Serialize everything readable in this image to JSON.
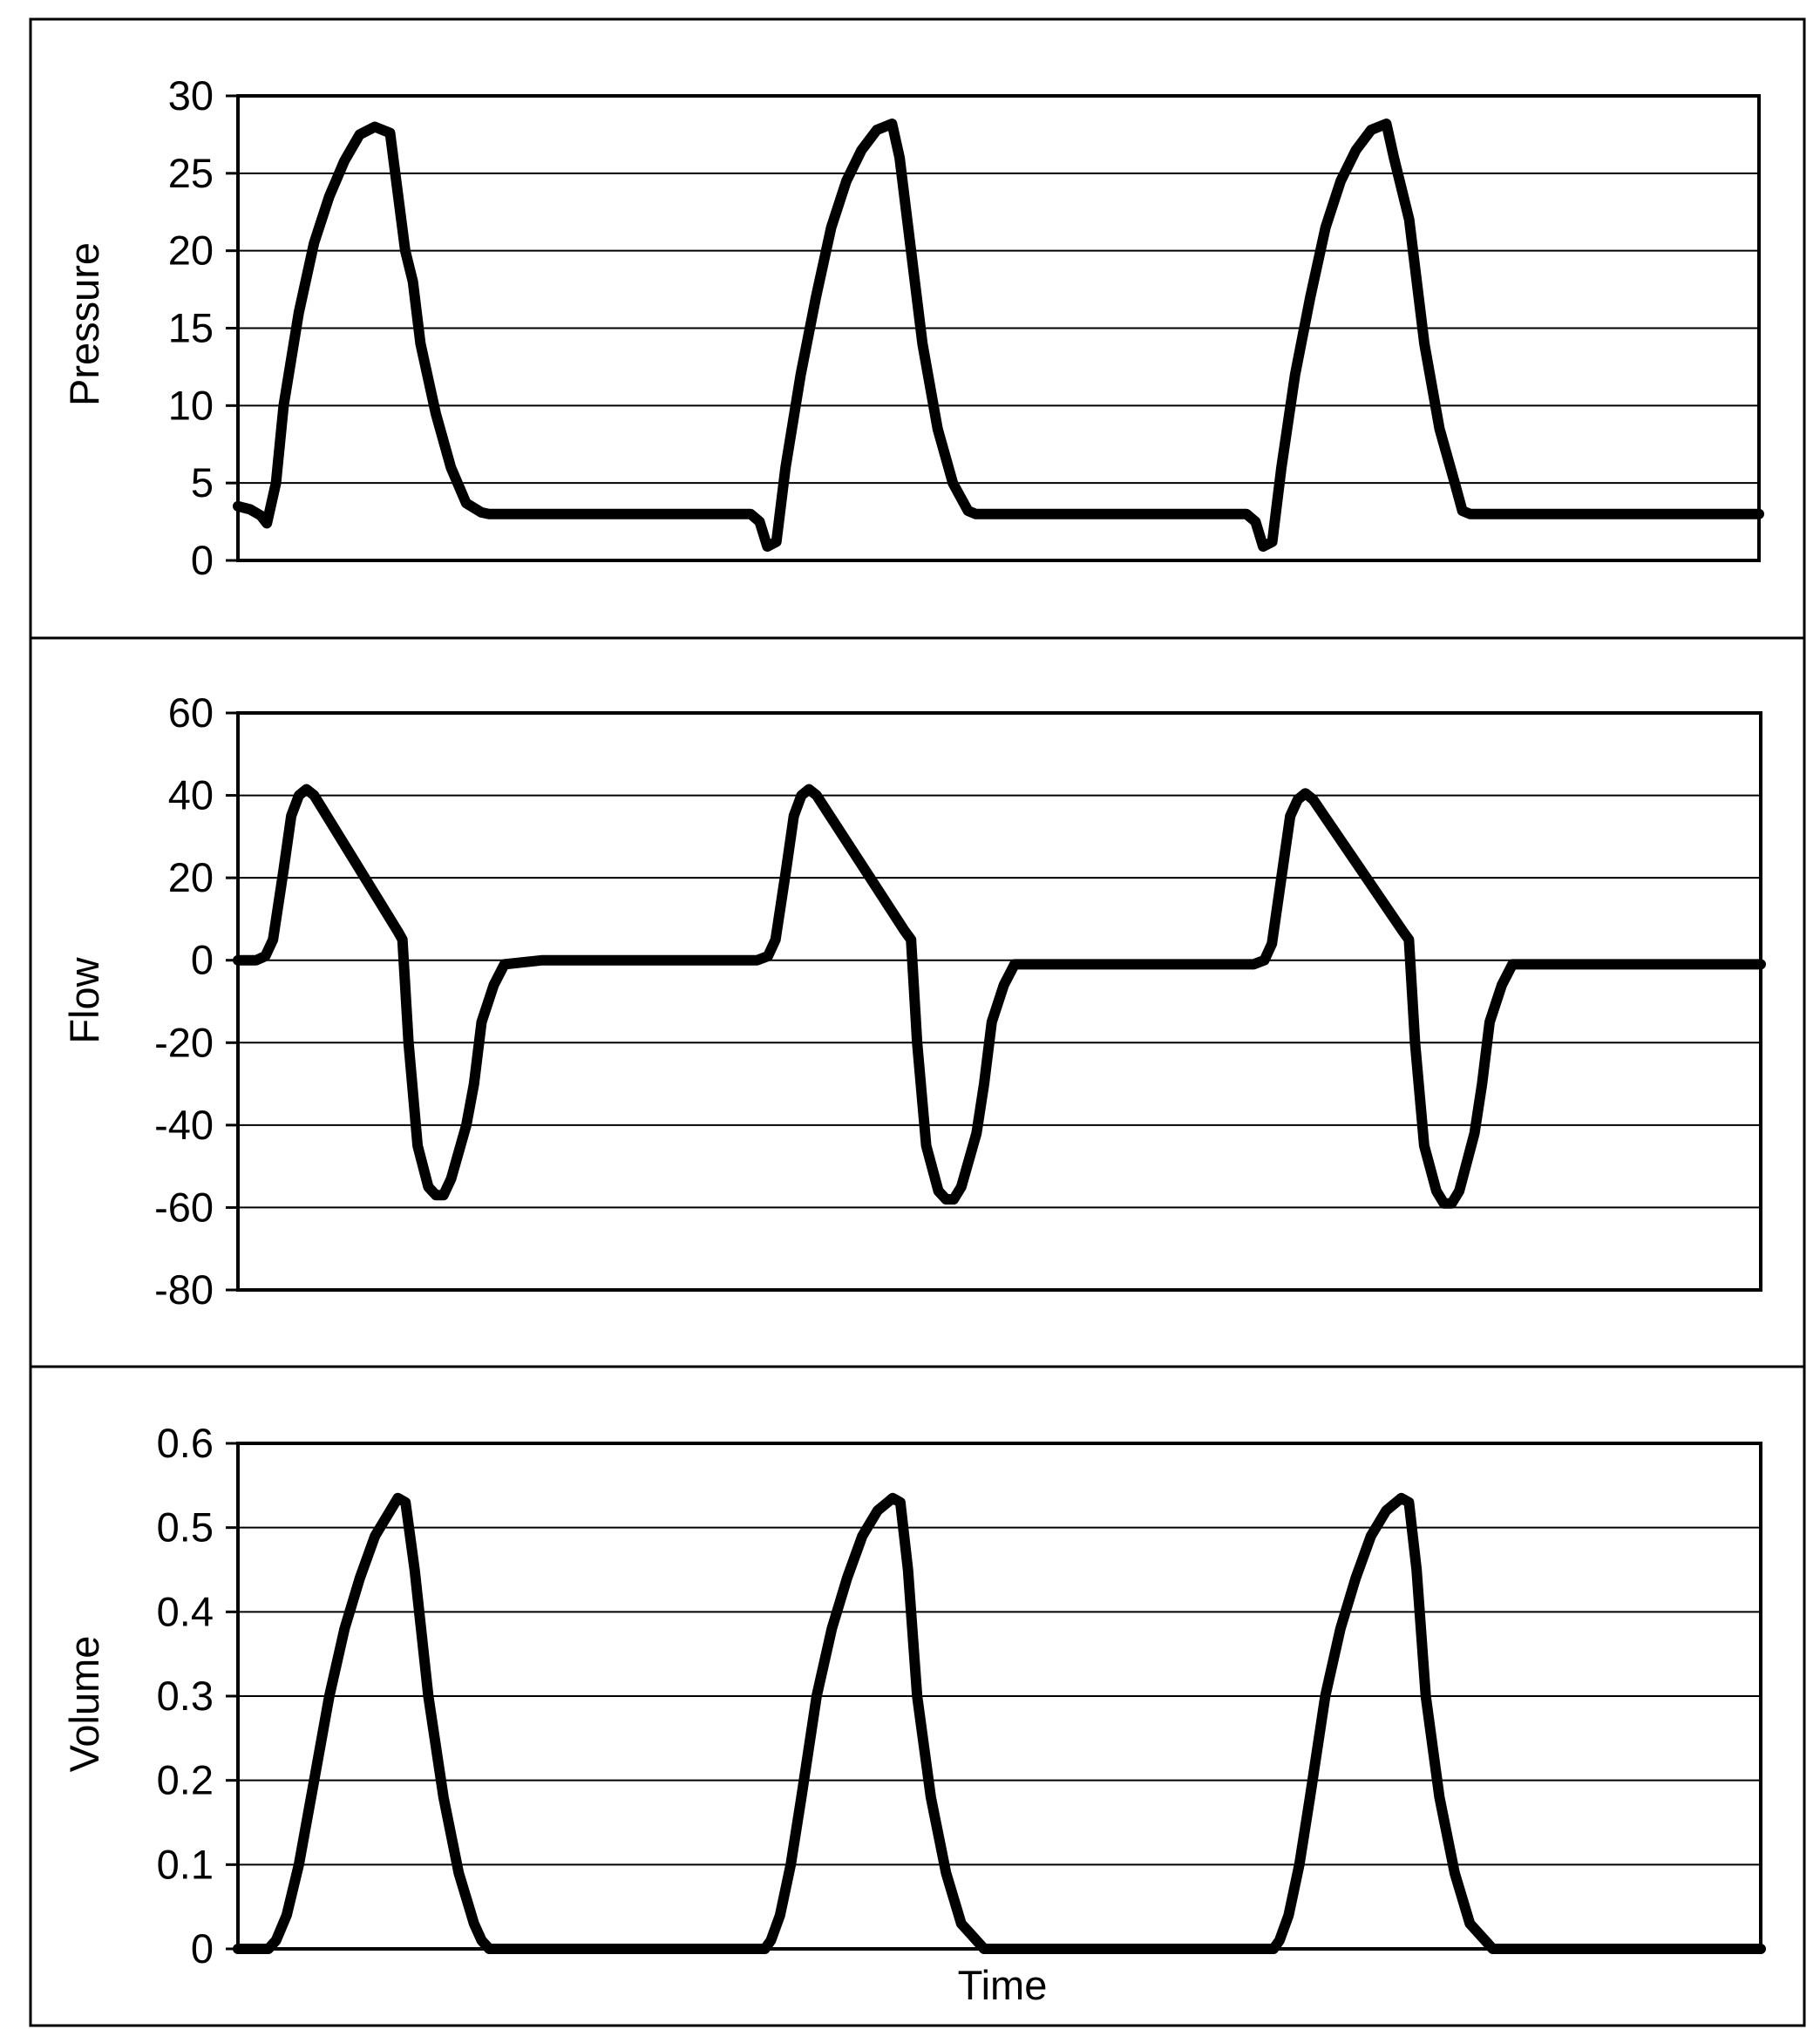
{
  "chart_data": [
    {
      "type": "line",
      "title": "",
      "ylabel": "Pressure",
      "xlabel": "",
      "ylim": [
        0,
        30
      ],
      "yticks": [
        0,
        5,
        10,
        15,
        20,
        25,
        30
      ],
      "grid": true,
      "x": [
        0,
        0.8,
        1.5,
        1.9,
        2.5,
        3,
        4,
        5,
        6,
        7,
        8,
        9,
        10,
        11,
        11.5,
        12,
        13,
        14,
        15,
        16,
        16.5,
        17,
        20,
        25,
        30,
        33.7,
        34.3,
        34.8,
        35.4,
        36,
        37,
        38,
        39,
        40,
        41,
        42,
        43,
        43.5,
        44,
        45,
        46,
        47,
        48,
        48.5,
        49,
        52,
        57,
        62,
        66.3,
        66.9,
        67.4,
        68,
        68.6,
        69.5,
        70.5,
        71.5,
        72.5,
        73.5,
        74.5,
        75.5,
        76,
        77,
        78,
        79,
        80,
        80.5,
        81,
        85,
        90,
        95,
        100
      ],
      "values": [
        3.5,
        3.3,
        2.9,
        2.4,
        5,
        10,
        16,
        20.5,
        23.5,
        25.8,
        27.5,
        28,
        27.6,
        20,
        18,
        14,
        9.5,
        6,
        3.7,
        3.1,
        3,
        3,
        3,
        3,
        3,
        3,
        2.5,
        0.9,
        1.2,
        6,
        12,
        17,
        21.5,
        24.5,
        26.5,
        27.8,
        28.2,
        26,
        22,
        14,
        8.5,
        5,
        3.2,
        3,
        3,
        3,
        3,
        3,
        3,
        2.5,
        0.9,
        1.2,
        6,
        12,
        17,
        21.5,
        24.5,
        26.5,
        27.8,
        28.2,
        26,
        22,
        14,
        8.5,
        5,
        3.2,
        3,
        3,
        3,
        3,
        3
      ]
    },
    {
      "type": "line",
      "title": "",
      "ylabel": "Flow",
      "xlabel": "",
      "ylim": [
        -80,
        60
      ],
      "yticks": [
        -80,
        -60,
        -40,
        -20,
        0,
        20,
        40,
        60
      ],
      "grid": true,
      "x": [
        0,
        1.2,
        1.8,
        2.3,
        3,
        3.5,
        4,
        4.5,
        5,
        10.5,
        10.8,
        11.2,
        11.8,
        12.5,
        13,
        13.5,
        14,
        15,
        15.5,
        16,
        16.8,
        17.5,
        20,
        25,
        30,
        34.1,
        34.8,
        35.3,
        36,
        36.5,
        37,
        37.5,
        38,
        43.8,
        44.2,
        44.6,
        45.2,
        46,
        46.5,
        47,
        47.5,
        48.5,
        49,
        49.5,
        50.3,
        51,
        55,
        60,
        66.7,
        67.4,
        67.9,
        68.6,
        69.1,
        69.6,
        70.1,
        70.6,
        76.5,
        76.9,
        77.3,
        77.9,
        78.7,
        79.2,
        79.7,
        80.2,
        81.2,
        81.7,
        82.2,
        83,
        83.7,
        90,
        95,
        100
      ],
      "values": [
        0,
        0,
        1,
        5,
        22,
        35,
        40,
        41.5,
        40,
        7,
        5,
        -20,
        -45,
        -55,
        -57,
        -57,
        -53,
        -40,
        -30,
        -15,
        -6,
        -1,
        0,
        0,
        0,
        0,
        1,
        5,
        22,
        35,
        40,
        41.5,
        40,
        7,
        5,
        -20,
        -45,
        -56,
        -58,
        -58,
        -55,
        -42,
        -30,
        -15,
        -6,
        -1,
        -1,
        -1,
        -1,
        0,
        4,
        22,
        35,
        39,
        40.5,
        39,
        7,
        5,
        -20,
        -45,
        -56,
        -59,
        -59,
        -56,
        -42,
        -30,
        -15,
        -6,
        -1,
        -1,
        -1,
        -1
      ]
    },
    {
      "type": "line",
      "title": "",
      "ylabel": "Volume",
      "xlabel": "Time",
      "ylim": [
        0,
        0.6
      ],
      "yticks": [
        0,
        0.1,
        0.2,
        0.3,
        0.4,
        0.5,
        0.6
      ],
      "grid": true,
      "x": [
        0,
        1.5,
        2,
        2.5,
        3.2,
        4,
        5,
        6,
        7,
        8,
        9,
        10,
        10.5,
        11,
        11.6,
        12.5,
        13.5,
        14.5,
        15.5,
        16,
        16.5,
        17,
        20,
        25,
        30,
        34.6,
        35,
        35.6,
        36.3,
        37,
        38,
        39,
        40,
        41,
        42,
        43,
        43.5,
        44,
        44.6,
        45.5,
        46.5,
        47.5,
        48.5,
        49,
        49.5,
        50,
        55,
        60,
        65,
        68,
        68.4,
        69,
        69.7,
        70.4,
        71.4,
        72.4,
        73.4,
        74.4,
        75.4,
        76.4,
        76.9,
        77.4,
        78,
        78.9,
        79.9,
        80.9,
        81.9,
        82.4,
        82.9,
        83.4,
        90,
        95,
        100
      ],
      "values": [
        0,
        0,
        0,
        0.01,
        0.04,
        0.1,
        0.2,
        0.3,
        0.38,
        0.44,
        0.49,
        0.52,
        0.535,
        0.53,
        0.45,
        0.3,
        0.18,
        0.09,
        0.03,
        0.01,
        0,
        0,
        0,
        0,
        0,
        0,
        0.01,
        0.04,
        0.1,
        0.18,
        0.3,
        0.38,
        0.44,
        0.49,
        0.52,
        0.535,
        0.53,
        0.45,
        0.3,
        0.18,
        0.09,
        0.03,
        0.01,
        0,
        0,
        0,
        0,
        0,
        0,
        0,
        0.01,
        0.04,
        0.1,
        0.18,
        0.3,
        0.38,
        0.44,
        0.49,
        0.52,
        0.535,
        0.53,
        0.45,
        0.3,
        0.18,
        0.09,
        0.03,
        0.01,
        0,
        0,
        0,
        0,
        0,
        0
      ]
    }
  ]
}
